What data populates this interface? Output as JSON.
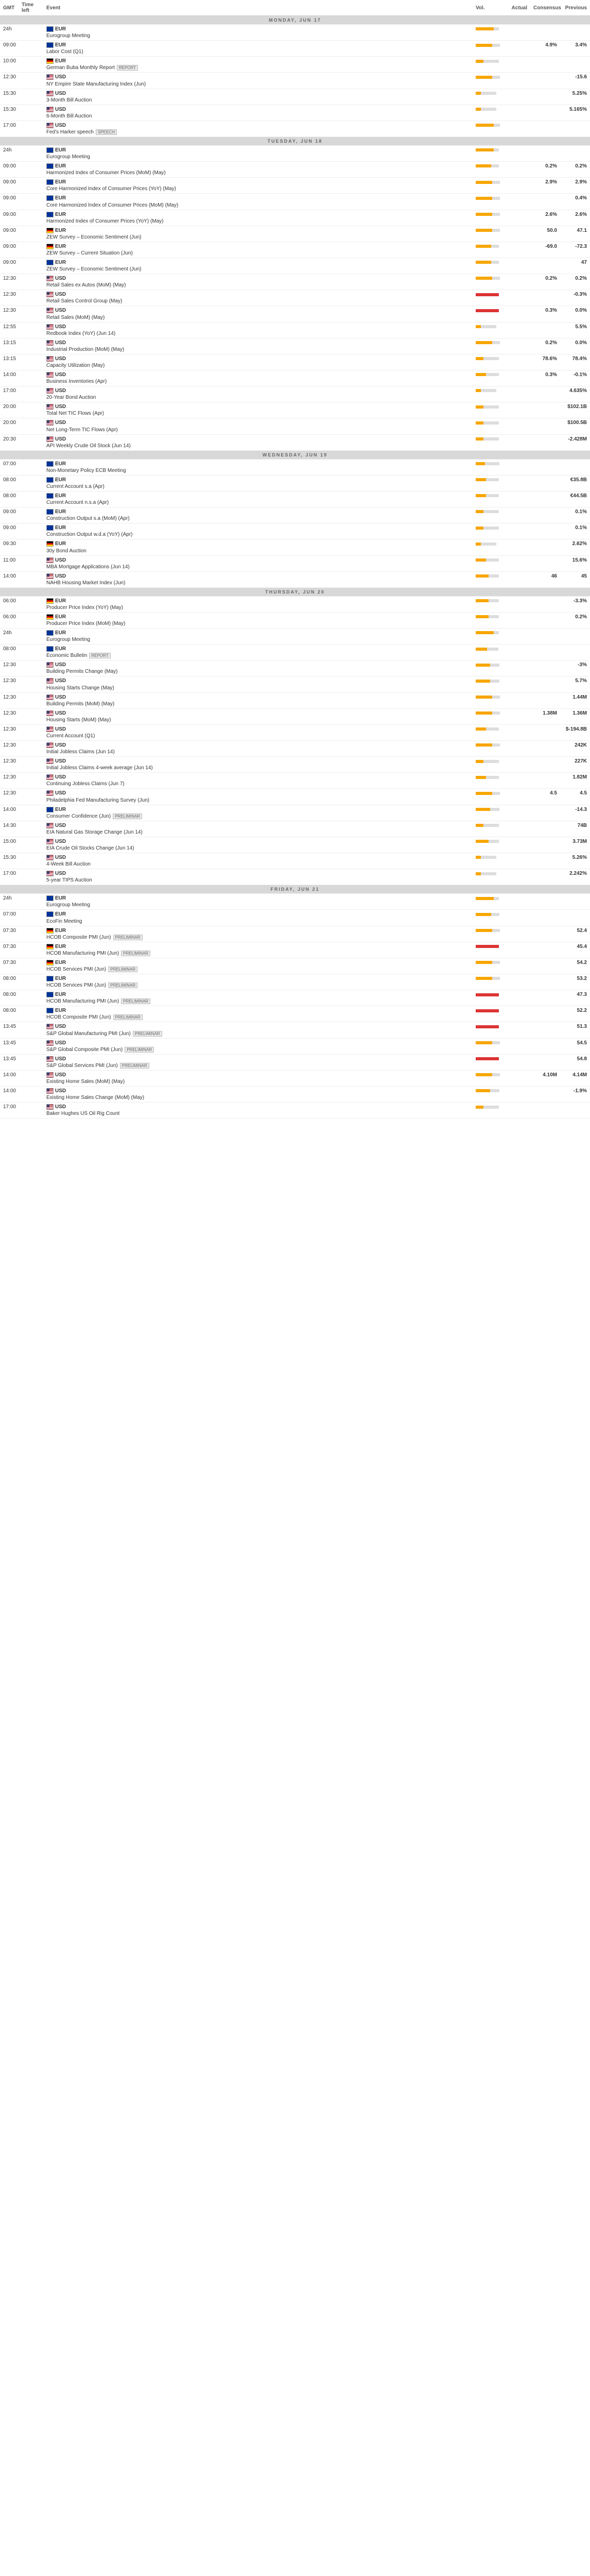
{
  "columns": {
    "c1": "GMT",
    "c2": "Time left",
    "c3": "Event",
    "c4": "Vol.",
    "c5": "Actual",
    "c6": "Consensus",
    "c7": "Previous"
  },
  "days": [
    {
      "label": "Monday, Jun 17",
      "rows": [
        {
          "t": "24h",
          "f": "eur",
          "c": "EUR",
          "e": "Eurogroup Meeting",
          "vb": [
            35,
            10,
            0
          ],
          "a": "",
          "co": "",
          "p": ""
        },
        {
          "t": "09:00",
          "f": "eur",
          "c": "EUR",
          "e": "Labor Cost (Q1)",
          "vb": [
            32,
            15,
            0
          ],
          "a": "",
          "co": "4.9%",
          "p": "3.4%"
        },
        {
          "t": "10:00",
          "f": "deu",
          "c": "EUR",
          "e": "German Buba Monthly Report",
          "tag": "REPORT",
          "vb": [
            15,
            30,
            0
          ],
          "a": "",
          "co": "",
          "p": ""
        },
        {
          "t": "12:30",
          "f": "usd",
          "c": "USD",
          "e": "NY Empire State Manufacturing Index (Jun)",
          "vb": [
            32,
            15,
            0
          ],
          "a": "",
          "co": "",
          "p": "-15.6"
        },
        {
          "t": "15:30",
          "f": "usd",
          "c": "USD",
          "e": "3-Month Bill Auction",
          "vb": [
            10,
            30,
            0
          ],
          "a": "",
          "co": "",
          "p": "5.25%"
        },
        {
          "t": "15:30",
          "f": "usd",
          "c": "USD",
          "e": "6-Month Bill Auction",
          "vb": [
            10,
            30,
            0
          ],
          "a": "",
          "co": "",
          "p": "5.165%"
        },
        {
          "t": "17:00",
          "f": "usd",
          "c": "USD",
          "e": "Fed's Harker speech",
          "tag": "SPEECH",
          "vb": [
            35,
            12,
            0
          ],
          "a": "",
          "co": "",
          "p": ""
        }
      ]
    },
    {
      "label": "Tuesday, Jun 18",
      "rows": [
        {
          "t": "24h",
          "f": "eur",
          "c": "EUR",
          "e": "Eurogroup Meeting",
          "vb": [
            35,
            10,
            0
          ],
          "a": "",
          "co": "",
          "p": ""
        },
        {
          "t": "09:00",
          "f": "eur",
          "c": "EUR",
          "e": "Harmonized Index of Consumer Prices (MoM) (May)",
          "vb": [
            30,
            15,
            0
          ],
          "a": "",
          "co": "0.2%",
          "p": "0.2%"
        },
        {
          "t": "09:00",
          "f": "eur",
          "c": "EUR",
          "e": "Core Harmonized Index of Consumer Prices (YoY) (May)",
          "vb": [
            32,
            15,
            0
          ],
          "a": "",
          "co": "2.9%",
          "p": "2.9%"
        },
        {
          "t": "09:00",
          "f": "eur",
          "c": "EUR",
          "e": "Core Harmonized Index of Consumer Prices (MoM) (May)",
          "vb": [
            32,
            15,
            0
          ],
          "a": "",
          "co": "",
          "p": "0.4%"
        },
        {
          "t": "09:00",
          "f": "eur",
          "c": "EUR",
          "e": "Harmonized Index of Consumer Prices (YoY) (May)",
          "vb": [
            32,
            15,
            0
          ],
          "a": "",
          "co": "2.6%",
          "p": "2.6%"
        },
        {
          "t": "09:00",
          "f": "deu",
          "c": "EUR",
          "e": "ZEW Survey – Economic Sentiment (Jun)",
          "vb": [
            32,
            15,
            0
          ],
          "a": "",
          "co": "50.0",
          "p": "47.1"
        },
        {
          "t": "09:00",
          "f": "deu",
          "c": "EUR",
          "e": "ZEW Survey – Current Situation (Jun)",
          "vb": [
            30,
            15,
            0
          ],
          "a": "",
          "co": "-69.0",
          "p": "-72.3"
        },
        {
          "t": "09:00",
          "f": "eur",
          "c": "EUR",
          "e": "ZEW Survey – Economic Sentiment (Jun)",
          "vb": [
            30,
            15,
            0
          ],
          "a": "",
          "co": "",
          "p": "47"
        },
        {
          "t": "12:30",
          "f": "usd",
          "c": "USD",
          "e": "Retail Sales ex Autos (MoM) (May)",
          "vb": [
            32,
            15,
            0
          ],
          "a": "",
          "co": "0.2%",
          "p": "0.2%"
        },
        {
          "t": "12:30",
          "f": "usd",
          "c": "USD",
          "e": "Retail Sales Control Group (May)",
          "vb": [
            0,
            0,
            45
          ],
          "a": "",
          "co": "",
          "p": "-0.3%"
        },
        {
          "t": "12:30",
          "f": "usd",
          "c": "USD",
          "e": "Retail Sales (MoM) (May)",
          "vb": [
            0,
            0,
            45
          ],
          "a": "",
          "co": "0.3%",
          "p": "0.0%"
        },
        {
          "t": "12:55",
          "f": "usd",
          "c": "USD",
          "e": "Redbook Index (YoY) (Jun 14)",
          "vb": [
            10,
            30,
            0
          ],
          "a": "",
          "co": "",
          "p": "5.5%"
        },
        {
          "t": "13:15",
          "f": "usd",
          "c": "USD",
          "e": "Industrial Production (MoM) (May)",
          "vb": [
            32,
            15,
            0
          ],
          "a": "",
          "co": "0.2%",
          "p": "0.0%"
        },
        {
          "t": "13:15",
          "f": "usd",
          "c": "USD",
          "e": "Capacity Utilization (May)",
          "vb": [
            15,
            30,
            0
          ],
          "a": "",
          "co": "78.6%",
          "p": "78.4%"
        },
        {
          "t": "14:00",
          "f": "usd",
          "c": "USD",
          "e": "Business Inventories (Apr)",
          "vb": [
            20,
            25,
            0
          ],
          "a": "",
          "co": "0.3%",
          "p": "-0.1%"
        },
        {
          "t": "17:00",
          "f": "usd",
          "c": "USD",
          "e": "20-Year Bond Auction",
          "vb": [
            10,
            30,
            0
          ],
          "a": "",
          "co": "",
          "p": "4.635%"
        },
        {
          "t": "20:00",
          "f": "usd",
          "c": "USD",
          "e": "Total Net TIC Flows (Apr)",
          "vb": [
            15,
            30,
            0
          ],
          "a": "",
          "co": "",
          "p": "$102.1B"
        },
        {
          "t": "20:00",
          "f": "usd",
          "c": "USD",
          "e": "Net Long-Term TIC Flows (Apr)",
          "vb": [
            15,
            30,
            0
          ],
          "a": "",
          "co": "",
          "p": "$100.5B"
        },
        {
          "t": "20:30",
          "f": "usd",
          "c": "USD",
          "e": "API Weekly Crude Oil Stock (Jun 14)",
          "vb": [
            15,
            30,
            0
          ],
          "a": "",
          "co": "",
          "p": "-2.428M"
        }
      ]
    },
    {
      "label": "Wednesday, Jun 19",
      "rows": [
        {
          "t": "07:00",
          "f": "eur",
          "c": "EUR",
          "e": "Non-Monetary Policy ECB Meeting",
          "vb": [
            18,
            28,
            0
          ],
          "a": "",
          "co": "",
          "p": ""
        },
        {
          "t": "08:00",
          "f": "eur",
          "c": "EUR",
          "e": "Current Account s.a (Apr)",
          "vb": [
            20,
            25,
            0
          ],
          "a": "",
          "co": "",
          "p": "€35.8B"
        },
        {
          "t": "08:00",
          "f": "eur",
          "c": "EUR",
          "e": "Current Account n.s.a (Apr)",
          "vb": [
            20,
            25,
            0
          ],
          "a": "",
          "co": "",
          "p": "€44.5B"
        },
        {
          "t": "09:00",
          "f": "eur",
          "c": "EUR",
          "e": "Construction Output s.a (MoM) (Apr)",
          "vb": [
            15,
            30,
            0
          ],
          "a": "",
          "co": "",
          "p": "0.1%"
        },
        {
          "t": "09:00",
          "f": "eur",
          "c": "EUR",
          "e": "Construction Output w.d.a (YoY) (Apr)",
          "vb": [
            15,
            30,
            0
          ],
          "a": "",
          "co": "",
          "p": "0.1%"
        },
        {
          "t": "09:30",
          "f": "deu",
          "c": "EUR",
          "e": "30y Bond Auction",
          "vb": [
            10,
            30,
            0
          ],
          "a": "",
          "co": "",
          "p": "2.62%"
        },
        {
          "t": "11:00",
          "f": "usd",
          "c": "USD",
          "e": "MBA Mortgage Applications (Jun 14)",
          "vb": [
            20,
            25,
            0
          ],
          "a": "",
          "co": "",
          "p": "15.6%"
        },
        {
          "t": "14:00",
          "f": "usd",
          "c": "USD",
          "e": "NAHB Housing Market Index (Jun)",
          "vb": [
            25,
            20,
            0
          ],
          "a": "",
          "co": "46",
          "p": "45"
        }
      ]
    },
    {
      "label": "Thursday, Jun 20",
      "rows": [
        {
          "t": "06:00",
          "f": "deu",
          "c": "EUR",
          "e": "Producer Price Index (YoY) (May)",
          "vb": [
            25,
            20,
            0
          ],
          "a": "",
          "co": "",
          "p": "-3.3%"
        },
        {
          "t": "06:00",
          "f": "deu",
          "c": "EUR",
          "e": "Producer Price Index (MoM) (May)",
          "vb": [
            25,
            20,
            0
          ],
          "a": "",
          "co": "",
          "p": "0.2%"
        },
        {
          "t": "24h",
          "f": "eur",
          "c": "EUR",
          "e": "Eurogroup Meeting",
          "vb": [
            35,
            10,
            0
          ],
          "a": "",
          "co": "",
          "p": ""
        },
        {
          "t": "08:00",
          "f": "eur",
          "c": "EUR",
          "e": "Economic Bulletin",
          "tag": "REPORT",
          "vb": [
            22,
            22,
            0
          ],
          "a": "",
          "co": "",
          "p": ""
        },
        {
          "t": "12:30",
          "f": "usd",
          "c": "USD",
          "e": "Building Permits Change (May)",
          "vb": [
            28,
            18,
            0
          ],
          "a": "",
          "co": "",
          "p": "-3%"
        },
        {
          "t": "12:30",
          "f": "usd",
          "c": "USD",
          "e": "Housing Starts Change (May)",
          "vb": [
            28,
            18,
            0
          ],
          "a": "",
          "co": "",
          "p": "5.7%"
        },
        {
          "t": "12:30",
          "f": "usd",
          "c": "USD",
          "e": "Building Permits (MoM) (May)",
          "vb": [
            32,
            15,
            0
          ],
          "a": "",
          "co": "",
          "p": "1.44M"
        },
        {
          "t": "12:30",
          "f": "usd",
          "c": "USD",
          "e": "Housing Starts (MoM) (May)",
          "vb": [
            32,
            15,
            0
          ],
          "a": "",
          "co": "1.38M",
          "p": "1.36M"
        },
        {
          "t": "12:30",
          "f": "usd",
          "c": "USD",
          "e": "Current Account (Q1)",
          "vb": [
            20,
            25,
            0
          ],
          "a": "",
          "co": "",
          "p": "$-194.8B"
        },
        {
          "t": "12:30",
          "f": "usd",
          "c": "USD",
          "e": "Initial Jobless Claims (Jun 14)",
          "vb": [
            32,
            15,
            0
          ],
          "a": "",
          "co": "",
          "p": "242K"
        },
        {
          "t": "12:30",
          "f": "usd",
          "c": "USD",
          "e": "Initial Jobless Claims 4-week average (Jun 14)",
          "vb": [
            15,
            30,
            0
          ],
          "a": "",
          "co": "",
          "p": "227K"
        },
        {
          "t": "12:30",
          "f": "usd",
          "c": "USD",
          "e": "Continuing Jobless Claims (Jun 7)",
          "vb": [
            20,
            25,
            0
          ],
          "a": "",
          "co": "",
          "p": "1.82M"
        },
        {
          "t": "12:30",
          "f": "usd",
          "c": "USD",
          "e": "Philadelphia Fed Manufacturing Survey (Jun)",
          "vb": [
            32,
            15,
            0
          ],
          "a": "",
          "co": "4.5",
          "p": "4.5"
        },
        {
          "t": "14:00",
          "f": "eur",
          "c": "EUR",
          "e": "Consumer Confidence (Jun)",
          "tag": "PRELIMINAR",
          "vb": [
            28,
            18,
            0
          ],
          "a": "",
          "co": "",
          "p": "-14.3"
        },
        {
          "t": "14:30",
          "f": "usd",
          "c": "USD",
          "e": "EIA Natural Gas Storage Change (Jun 14)",
          "vb": [
            15,
            30,
            0
          ],
          "a": "",
          "co": "",
          "p": "74B"
        },
        {
          "t": "15:00",
          "f": "usd",
          "c": "USD",
          "e": "EIA Crude Oil Stocks Change (Jun 14)",
          "vb": [
            25,
            20,
            0
          ],
          "a": "",
          "co": "",
          "p": "3.73M"
        },
        {
          "t": "15:30",
          "f": "usd",
          "c": "USD",
          "e": "4-Week Bill Auction",
          "vb": [
            10,
            30,
            0
          ],
          "a": "",
          "co": "",
          "p": "5.26%"
        },
        {
          "t": "17:00",
          "f": "usd",
          "c": "USD",
          "e": "5-year TIPS Auction",
          "vb": [
            10,
            30,
            0
          ],
          "a": "",
          "co": "",
          "p": "2.242%"
        }
      ]
    },
    {
      "label": "Friday, Jun 21",
      "rows": [
        {
          "t": "24h",
          "f": "eur",
          "c": "EUR",
          "e": "Eurogroup Meeting",
          "vb": [
            35,
            10,
            0
          ],
          "a": "",
          "co": "",
          "p": ""
        },
        {
          "t": "07:00",
          "f": "eur",
          "c": "EUR",
          "e": "EcoFin Meeting",
          "vb": [
            30,
            16,
            0
          ],
          "a": "",
          "co": "",
          "p": ""
        },
        {
          "t": "07:30",
          "f": "deu",
          "c": "EUR",
          "e": "HCOB Composite PMI (Jun)",
          "tag": "PRELIMINAR",
          "vb": [
            32,
            15,
            0
          ],
          "a": "",
          "co": "",
          "p": "52.4"
        },
        {
          "t": "07:30",
          "f": "deu",
          "c": "EUR",
          "e": "HCOB Manufacturing PMI (Jun)",
          "tag": "PRELIMINAR",
          "vb": [
            0,
            0,
            45
          ],
          "a": "",
          "co": "",
          "p": "45.4"
        },
        {
          "t": "07:30",
          "f": "deu",
          "c": "EUR",
          "e": "HCOB Services PMI (Jun)",
          "tag": "PRELIMINAR",
          "vb": [
            32,
            15,
            0
          ],
          "a": "",
          "co": "",
          "p": "54.2"
        },
        {
          "t": "08:00",
          "f": "eur",
          "c": "EUR",
          "e": "HCOB Services PMI (Jun)",
          "tag": "PRELIMINAR",
          "vb": [
            32,
            15,
            0
          ],
          "a": "",
          "co": "",
          "p": "53.2"
        },
        {
          "t": "08:00",
          "f": "eur",
          "c": "EUR",
          "e": "HCOB Manufacturing PMI (Jun)",
          "tag": "PRELIMINAR",
          "vb": [
            0,
            0,
            45
          ],
          "a": "",
          "co": "",
          "p": "47.3"
        },
        {
          "t": "08:00",
          "f": "eur",
          "c": "EUR",
          "e": "HCOB Composite PMI (Jun)",
          "tag": "PRELIMINAR",
          "vb": [
            0,
            0,
            45
          ],
          "a": "",
          "co": "",
          "p": "52.2"
        },
        {
          "t": "13:45",
          "f": "usd",
          "c": "USD",
          "e": "S&P Global Manufacturing PMI (Jun)",
          "tag": "PRELIMINAR",
          "vb": [
            0,
            0,
            45
          ],
          "a": "",
          "co": "",
          "p": "51.3"
        },
        {
          "t": "13:45",
          "f": "usd",
          "c": "USD",
          "e": "S&P Global Composite PMI (Jun)",
          "tag": "PRELIMINAR",
          "vb": [
            32,
            15,
            0
          ],
          "a": "",
          "co": "",
          "p": "54.5"
        },
        {
          "t": "13:45",
          "f": "usd",
          "c": "USD",
          "e": "S&P Global Services PMI (Jun)",
          "tag": "PRELIMINAR",
          "vb": [
            0,
            0,
            45
          ],
          "a": "",
          "co": "",
          "p": "54.8"
        },
        {
          "t": "14:00",
          "f": "usd",
          "c": "USD",
          "e": "Existing Home Sales (MoM) (May)",
          "vb": [
            32,
            15,
            0
          ],
          "a": "",
          "co": "4.10M",
          "p": "4.14M"
        },
        {
          "t": "14:00",
          "f": "usd",
          "c": "USD",
          "e": "Existing Home Sales Change (MoM) (May)",
          "vb": [
            28,
            18,
            0
          ],
          "a": "",
          "co": "",
          "p": "-1.9%"
        },
        {
          "t": "17:00",
          "f": "usd",
          "c": "USD",
          "e": "Baker Hughes US Oil Rig Count",
          "vb": [
            15,
            30,
            0
          ],
          "a": "",
          "co": "",
          "p": ""
        }
      ]
    }
  ]
}
